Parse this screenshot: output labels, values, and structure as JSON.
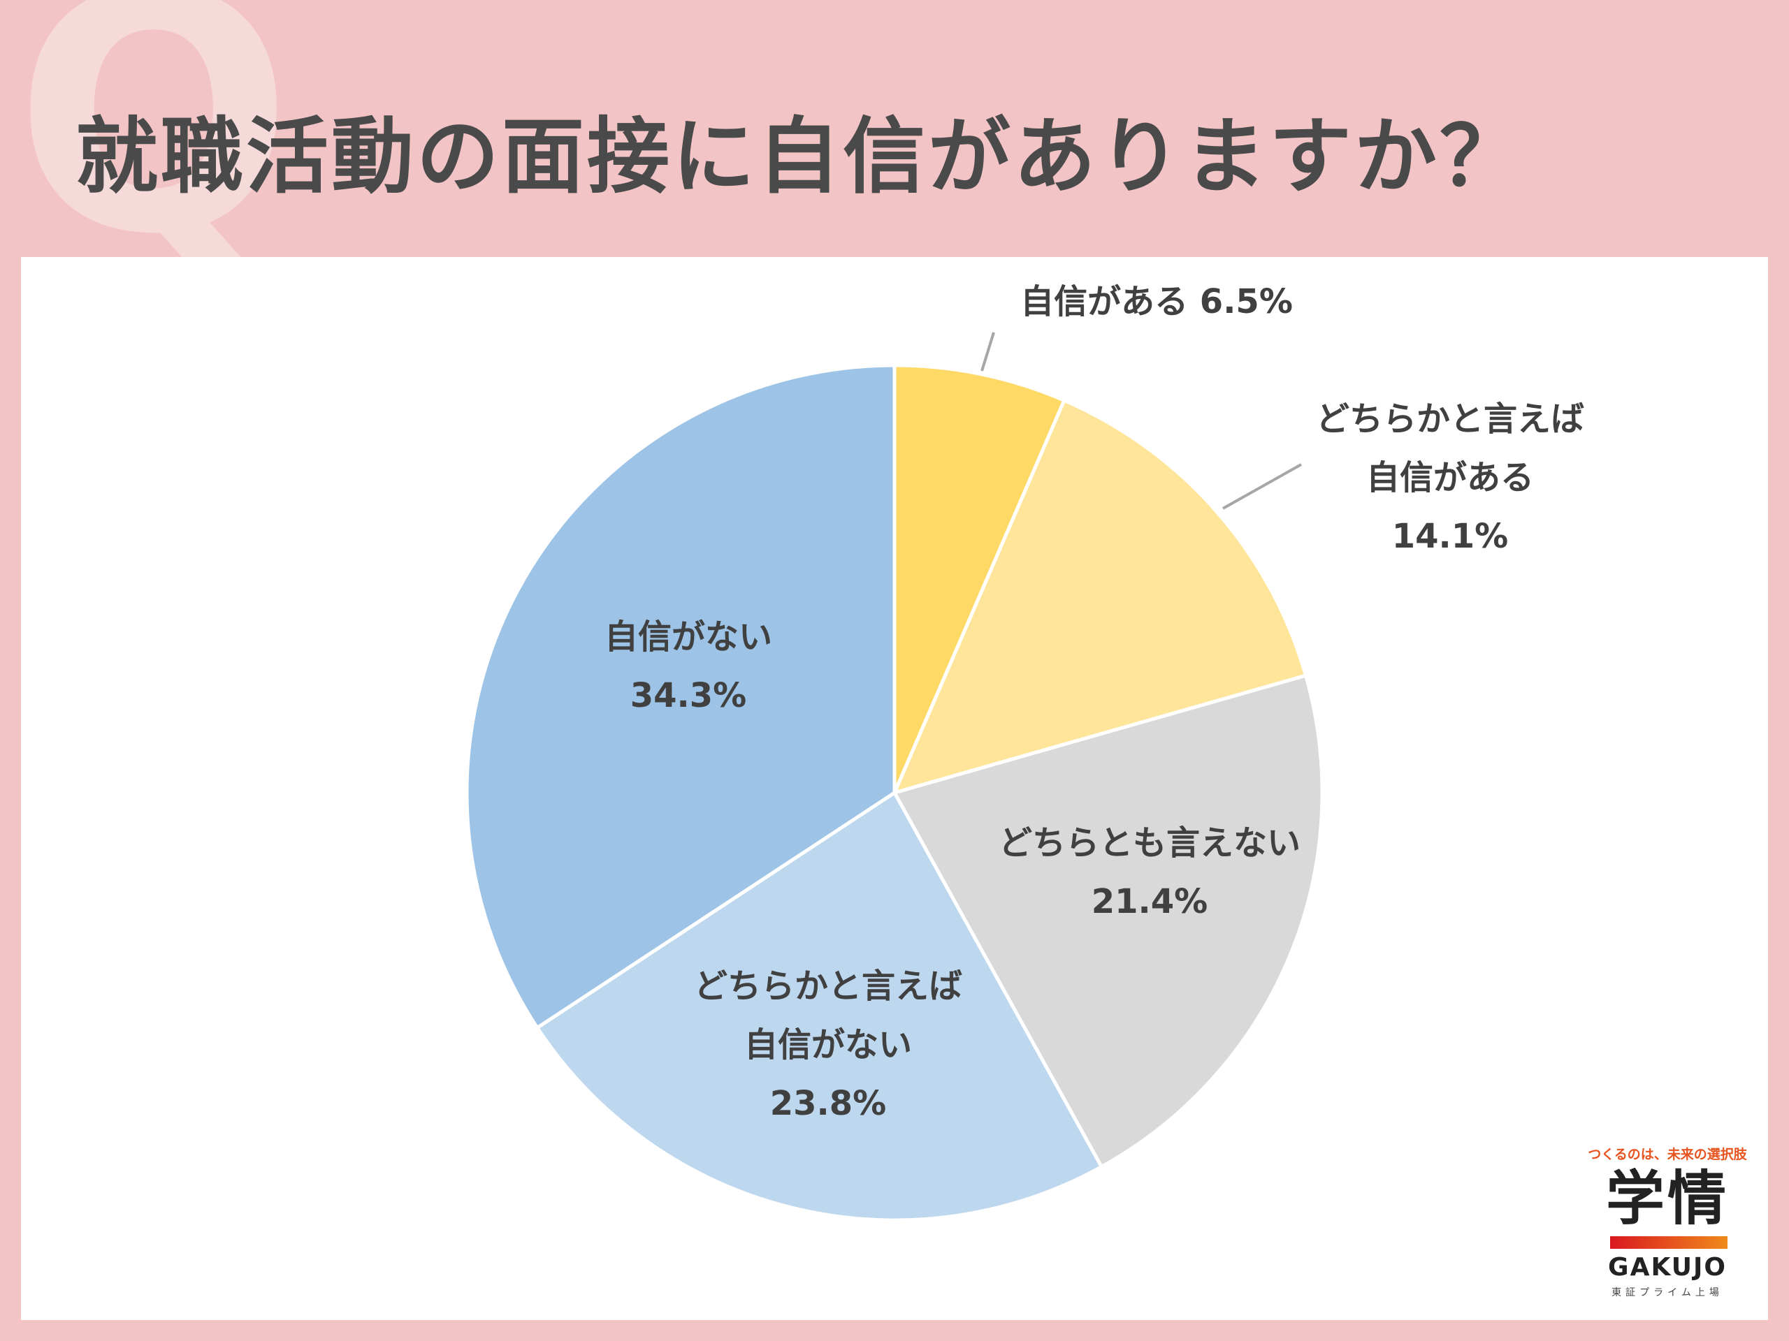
{
  "page": {
    "decor_letter": "Q",
    "title": "就職活動の面接に自信がありますか？"
  },
  "chart_data": {
    "type": "pie",
    "categories": [
      "自信がある",
      "どちらかと言えば自信がある",
      "どちらとも言えない",
      "どちらかと言えば自信がない",
      "自信がない"
    ],
    "values": [
      6.5,
      14.1,
      21.4,
      23.8,
      34.3
    ],
    "colors": [
      "#ffd966",
      "#ffe599",
      "#d9d9d9",
      "#bdd7ee",
      "#9dc3e6"
    ],
    "labels": [
      {
        "lines": [
          "自信がある 6.5%"
        ]
      },
      {
        "lines": [
          "どちらかと言えば",
          "自信がある",
          "14.1%"
        ]
      },
      {
        "lines": [
          "どちらとも言えない",
          "21.4%"
        ]
      },
      {
        "lines": [
          "どちらかと言えば",
          "自信がない",
          "23.8%"
        ]
      },
      {
        "lines": [
          "自信がない",
          "34.3%"
        ]
      }
    ],
    "start": "12 o'clock",
    "direction": "clockwise"
  },
  "logo": {
    "tagline": "つくるのは、未来の選択肢",
    "name_kanji": "学情",
    "name_en": "GAKUJO",
    "sub": "東証プライム上場"
  }
}
